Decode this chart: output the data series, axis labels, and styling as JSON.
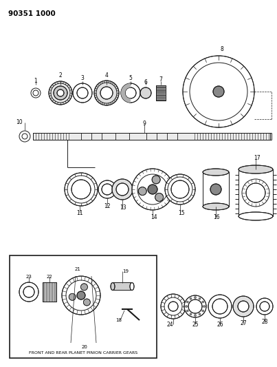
{
  "title": "90351 1000",
  "bg_color": "#ffffff",
  "line_color": "#1a1a1a",
  "box_label": "FRONT AND REAR PLANET PINION CARRIER GEARS",
  "fig_w": 4.03,
  "fig_h": 5.33,
  "dpi": 100
}
